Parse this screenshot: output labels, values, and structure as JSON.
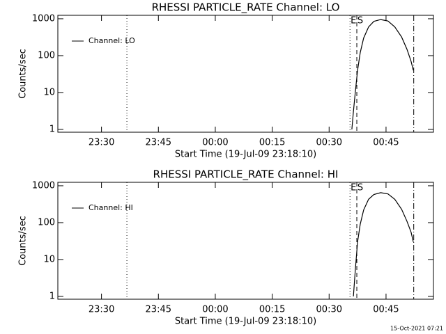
{
  "chart_data": [
    {
      "type": "line",
      "title": "RHESSI PARTICLE_RATE Channel: LO",
      "ylabel": "Counts/sec",
      "xlabel": "Start Time (19-Jul-09 23:18:10)",
      "log_y": true,
      "legend": "upper left",
      "x": [
        36.0,
        36.4,
        36.9,
        37.5,
        38.2,
        39.1,
        40.4,
        41.8,
        43.6,
        45.5,
        47.3,
        49.1,
        50.5,
        51.6,
        52.2
      ],
      "series": [
        {
          "name": "Channel: LO",
          "color": "#000000",
          "values": [
            1,
            3,
            10,
            40,
            120,
            300,
            600,
            850,
            950,
            870,
            600,
            320,
            150,
            70,
            40
          ]
        }
      ],
      "xlim": [
        -41.5,
        57.5
      ],
      "xticks": [
        {
          "value": -30,
          "label": "23:30"
        },
        {
          "value": -15,
          "label": "23:45"
        },
        {
          "value": 0,
          "label": "00:00"
        },
        {
          "value": 15,
          "label": "00:15"
        },
        {
          "value": 30,
          "label": "00:30"
        },
        {
          "value": 45,
          "label": "00:45"
        }
      ],
      "ylim": [
        0.84,
        1240
      ],
      "yticks": [
        1,
        10,
        100,
        1000
      ],
      "vlines": [
        {
          "x": -23.3,
          "style": "dotted"
        },
        {
          "x": 35.5,
          "style": "dotted",
          "label": "E"
        },
        {
          "x": 37.3,
          "style": "dashed",
          "label": "S"
        },
        {
          "x": 52.3,
          "style": "dashdot"
        }
      ]
    },
    {
      "type": "line",
      "title": "RHESSI PARTICLE_RATE Channel: HI",
      "ylabel": "Counts/sec",
      "xlabel": "Start Time (19-Jul-09 23:18:10)",
      "log_y": true,
      "legend": "upper left",
      "x": [
        36.4,
        36.9,
        37.5,
        38.2,
        39.1,
        40.4,
        41.8,
        43.6,
        45.5,
        47.3,
        49.1,
        50.5,
        51.6,
        52.2
      ],
      "series": [
        {
          "name": "Channel: HI",
          "color": "#000000",
          "values": [
            1,
            5,
            30,
            90,
            220,
            430,
            580,
            650,
            600,
            430,
            230,
            110,
            55,
            30
          ]
        }
      ],
      "xlim": [
        -41.5,
        57.5
      ],
      "xticks": [
        {
          "value": -30,
          "label": "23:30"
        },
        {
          "value": -15,
          "label": "23:45"
        },
        {
          "value": 0,
          "label": "00:00"
        },
        {
          "value": 15,
          "label": "00:15"
        },
        {
          "value": 30,
          "label": "00:30"
        },
        {
          "value": 45,
          "label": "00:45"
        }
      ],
      "ylim": [
        0.84,
        1240
      ],
      "yticks": [
        1,
        10,
        100,
        1000
      ],
      "vlines": [
        {
          "x": -23.3,
          "style": "dotted"
        },
        {
          "x": 35.5,
          "style": "dotted",
          "label": "E"
        },
        {
          "x": 37.3,
          "style": "dashed",
          "label": "S"
        },
        {
          "x": 52.3,
          "style": "dashdot"
        }
      ]
    }
  ],
  "footer": "15-Oct-2021 07:21"
}
